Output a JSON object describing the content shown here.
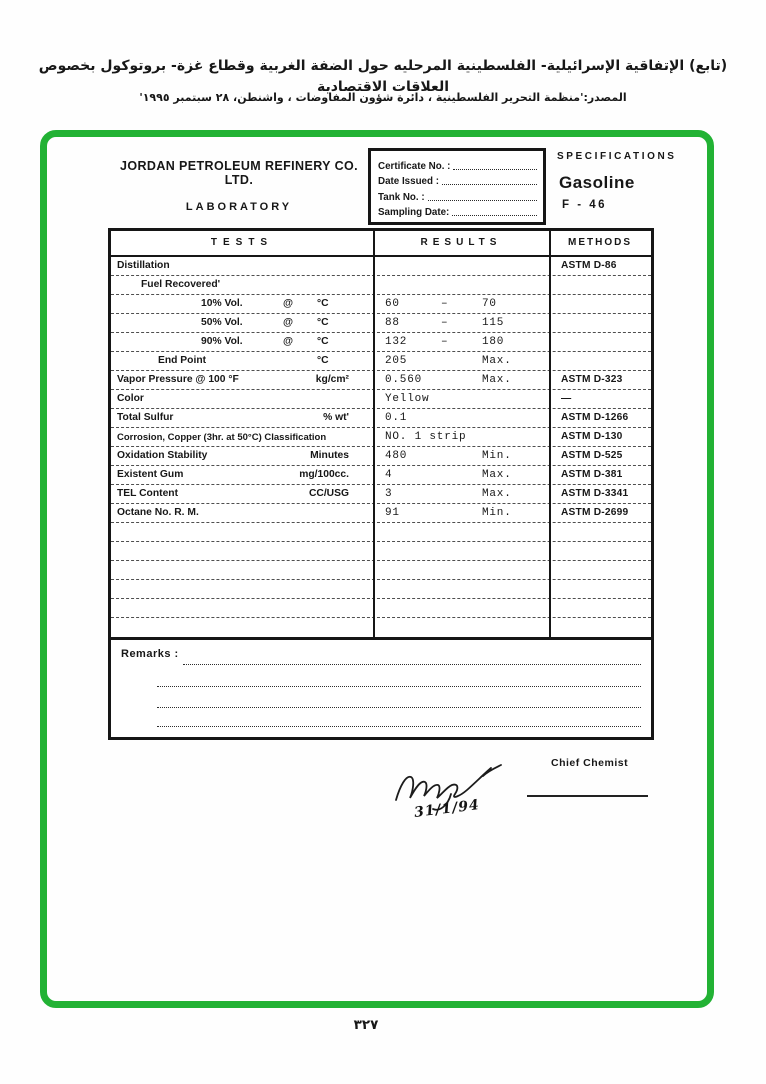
{
  "page": {
    "title_ar": "(تابع) الإتفاقية الإسرائيلية- الفلسطينية المرحليه حول الضفة الغربية وقطاع غزة- بروتوكول بخصوص العلاقات الاقتصادية",
    "source_ar": "المصدر:'منظمة التحرير الفلسطينية ، دائرة شؤون المفاوضات ، واشنطن، ٢٨ سبتمبر ١٩٩٥'",
    "page_number": "٣٢٧"
  },
  "form": {
    "company": "JORDAN PETROLEUM REFINERY CO. LTD.",
    "department": "LABORATORY",
    "certificate": {
      "fields": [
        {
          "label": "Certificate No. :"
        },
        {
          "label": "Date Issued    :"
        },
        {
          "label": "Tank No.       :"
        },
        {
          "label": "Sampling Date:"
        }
      ]
    },
    "spec": {
      "title": "SPECIFICATIONS",
      "product": "Gasoline",
      "grade": "F - 46"
    },
    "table": {
      "headers": [
        "TESTS",
        "RESULTS",
        "METHODS"
      ],
      "rows": [
        {
          "test": "Distillation",
          "method": "ASTM D-86"
        },
        {
          "test": "Fuel Recovered'"
        },
        {
          "test": "10% Vol.",
          "at": "@",
          "unit": "°C",
          "result": "60",
          "separator": "–",
          "result2": "70"
        },
        {
          "test": "50% Vol.",
          "at": "@",
          "unit": "°C",
          "result": "88",
          "separator": "–",
          "result2": "115"
        },
        {
          "test": "90% Vol.",
          "at": "@",
          "unit": "°C",
          "result": "132",
          "separator": "–",
          "result2": "180"
        },
        {
          "test": "End Point",
          "unit": "°C",
          "result": "205",
          "result2": "Max."
        },
        {
          "test": "Vapor Pressure @ 100 °F",
          "unit": "kg/cm²",
          "result": "0.560",
          "result2": "Max.",
          "method": "ASTM D-323"
        },
        {
          "test": "Color",
          "result": "Yellow",
          "method": "—"
        },
        {
          "test": "Total Sulfur",
          "unit": "% wt'",
          "result": "0.1",
          "method": "ASTM D-1266"
        },
        {
          "test": "Corrosion, Copper (3hr. at 50°C) Classification",
          "result": "NO. 1 strip",
          "method": "ASTM D-130"
        },
        {
          "test": "Oxidation Stability",
          "unit": "Minutes",
          "result": "480",
          "result2": "Min.",
          "method": "ASTM D-525"
        },
        {
          "test": "Existent Gum",
          "unit": "mg/100cc.",
          "result": "4",
          "result2": "Max.",
          "method": "ASTM D-381"
        },
        {
          "test": "TEL Content",
          "unit": "CC/USG",
          "result": "3",
          "result2": "Max.",
          "method": "ASTM D-3341"
        },
        {
          "test": "Octane No. R. M.",
          "result": "91",
          "result2": "Min.",
          "method": "ASTM D-2699"
        }
      ]
    },
    "remarks_label": "Remarks :",
    "chief_chemist_label": "Chief Chemist",
    "signature_date": "31/1/94"
  }
}
